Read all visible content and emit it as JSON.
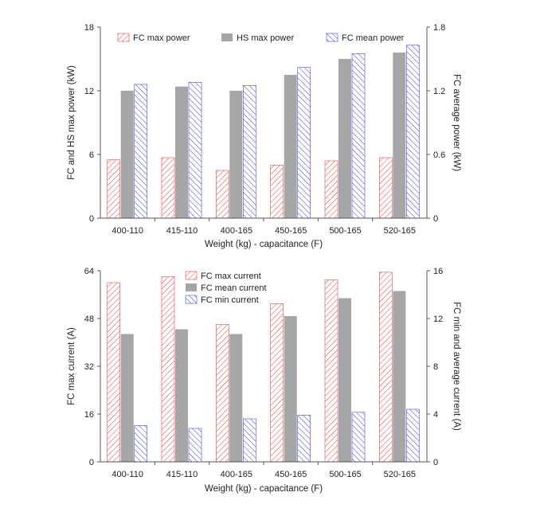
{
  "chart_data": [
    {
      "type": "bar",
      "categories": [
        "400-110",
        "415-110",
        "400-165",
        "450-165",
        "500-165",
        "520-165"
      ],
      "xlabel": "Weight (kg) - capacitance (F)",
      "ylabel": "FC and HS max power (kW)",
      "ylabel_right": "FC average power (kW)",
      "ylim": [
        0,
        18
      ],
      "yticks": [
        "0",
        "6",
        "12",
        "18"
      ],
      "ylim_right": [
        0,
        1.8
      ],
      "yticks_right": [
        "0",
        "0.6",
        "1.2",
        "1.8"
      ],
      "legend_position": "top",
      "series": [
        {
          "name": "FC max power",
          "axis": "left",
          "color": "#e8474a",
          "pattern": "hatch-red",
          "values": [
            5.5,
            5.7,
            4.5,
            5.0,
            5.4,
            5.7
          ]
        },
        {
          "name": "HS max power",
          "axis": "left",
          "color": "#a6a6a6",
          "pattern": "solid",
          "values": [
            12.0,
            12.4,
            12.0,
            13.5,
            15.0,
            15.6
          ]
        },
        {
          "name": "FC mean power",
          "axis": "right",
          "color": "#4a4ae0",
          "pattern": "hatch-blue",
          "values": [
            1.26,
            1.28,
            1.25,
            1.42,
            1.55,
            1.63
          ]
        }
      ]
    },
    {
      "type": "bar",
      "categories": [
        "400-110",
        "415-110",
        "400-165",
        "450-165",
        "500-165",
        "520-165"
      ],
      "xlabel": "Weight (kg) - capacitance (F)",
      "ylabel": "FC max current (A)",
      "ylabel_right": "FC min and average current (A)",
      "ylim": [
        0,
        64
      ],
      "yticks": [
        "0",
        "16",
        "32",
        "48",
        "64"
      ],
      "ylim_right": [
        0,
        16
      ],
      "yticks_right": [
        "0",
        "4",
        "8",
        "12",
        "16"
      ],
      "legend_position": "top-center",
      "series": [
        {
          "name": "FC max current",
          "axis": "left",
          "color": "#e8474a",
          "pattern": "hatch-red",
          "values": [
            60,
            62,
            46,
            53,
            61,
            63.5
          ]
        },
        {
          "name": "FC mean current",
          "axis": "right",
          "color": "#a6a6a6",
          "pattern": "solid",
          "values": [
            10.7,
            11.1,
            10.7,
            12.2,
            13.7,
            14.3
          ]
        },
        {
          "name": "FC min current",
          "axis": "right",
          "color": "#4a4ae0",
          "pattern": "hatch-blue",
          "values": [
            3.05,
            2.8,
            3.6,
            3.9,
            4.15,
            4.4
          ]
        }
      ]
    }
  ]
}
